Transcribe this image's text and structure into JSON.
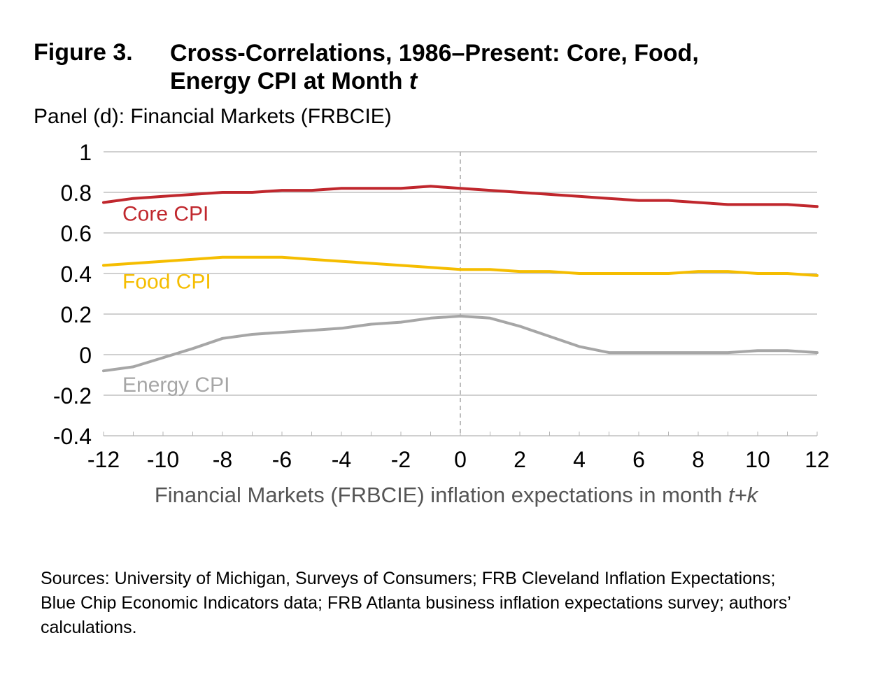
{
  "figure": {
    "label": "Figure 3.",
    "title_line1": "Cross-Correlations, 1986–Present: Core, Food,",
    "title_line2_main": "Energy CPI at Month ",
    "title_line2_italic": "t",
    "panel": "Panel (d): Financial Markets (FRBCIE)"
  },
  "chart_data": {
    "type": "line",
    "title": "Panel (d): Financial Markets (FRBCIE)",
    "xlabel_main": "Financial Markets (FRBCIE) inflation expectations in month ",
    "xlabel_italic": "t+k",
    "xlim": [
      -12,
      12
    ],
    "ylim": [
      -0.4,
      1
    ],
    "xticks": [
      "-12",
      "-10",
      "-8",
      "-6",
      "-4",
      "-2",
      "0",
      "2",
      "4",
      "6",
      "8",
      "10",
      "12"
    ],
    "yticks": [
      "1",
      "0.8",
      "0.6",
      "0.4",
      "0.2",
      "0",
      "-0.2",
      "-0.4"
    ],
    "grid": true,
    "reference_line_x": 0,
    "x": [
      -12,
      -11,
      -10,
      -9,
      -8,
      -7,
      -6,
      -5,
      -4,
      -3,
      -2,
      -1,
      0,
      1,
      2,
      3,
      4,
      5,
      6,
      7,
      8,
      9,
      10,
      11,
      12
    ],
    "series": [
      {
        "name": "Core CPI",
        "color": "#c0272d",
        "values": [
          0.75,
          0.77,
          0.78,
          0.79,
          0.8,
          0.8,
          0.81,
          0.81,
          0.82,
          0.82,
          0.82,
          0.83,
          0.82,
          0.81,
          0.8,
          0.79,
          0.78,
          0.77,
          0.76,
          0.76,
          0.75,
          0.74,
          0.74,
          0.74,
          0.73
        ]
      },
      {
        "name": "Food CPI",
        "color": "#f5bd00",
        "values": [
          0.44,
          0.45,
          0.46,
          0.47,
          0.48,
          0.48,
          0.48,
          0.47,
          0.46,
          0.45,
          0.44,
          0.43,
          0.42,
          0.42,
          0.41,
          0.41,
          0.4,
          0.4,
          0.4,
          0.4,
          0.41,
          0.41,
          0.4,
          0.4,
          0.39
        ]
      },
      {
        "name": "Energy CPI",
        "color": "#a6a6a6",
        "values": [
          -0.08,
          -0.06,
          -0.015,
          0.03,
          0.08,
          0.1,
          0.11,
          0.12,
          0.13,
          0.15,
          0.16,
          0.18,
          0.19,
          0.18,
          0.14,
          0.09,
          0.04,
          0.01,
          0.01,
          0.01,
          0.01,
          0.01,
          0.02,
          0.02,
          0.01
        ]
      }
    ]
  },
  "sources": "Sources: University of Michigan, Surveys of Consumers; FRB Cleveland Inflation Expectations; Blue Chip Economic Indicators data; FRB Atlanta business inflation expectations survey; authors’ calculations."
}
